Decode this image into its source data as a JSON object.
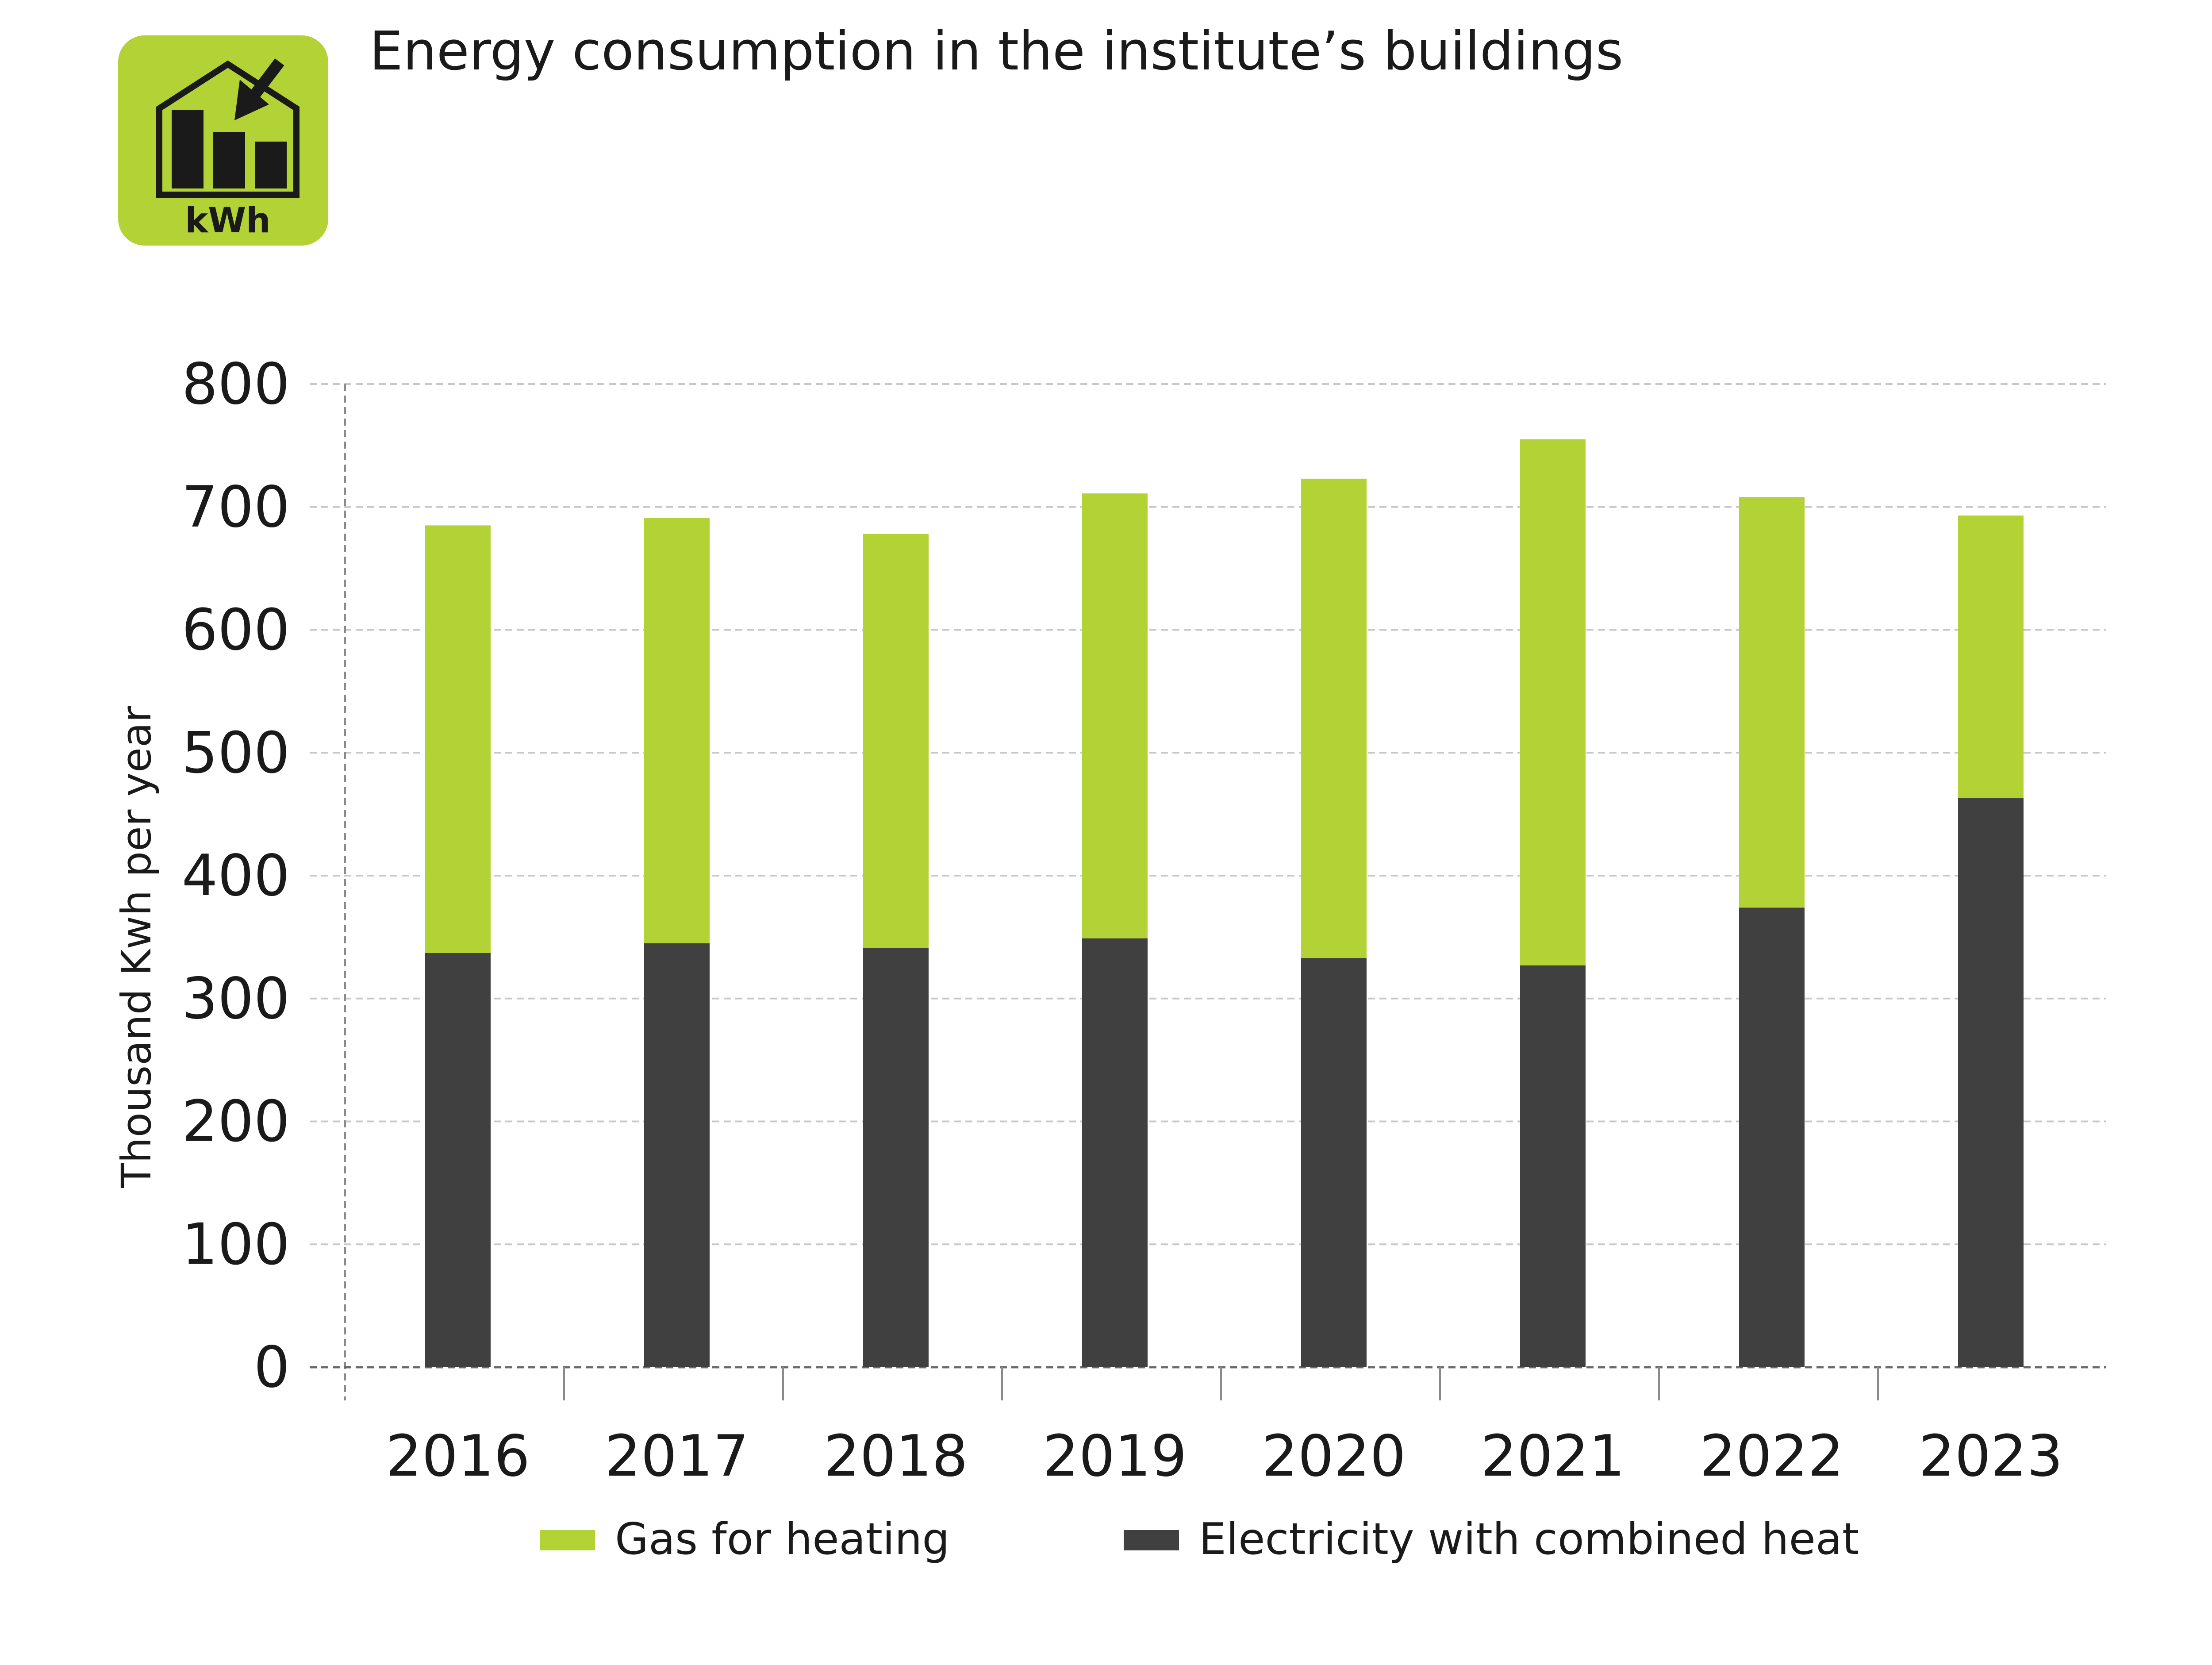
{
  "header": {
    "title": "Energy consumption in the institute’s buildings",
    "icon_label": "kWh",
    "icon_name": "energy-house-chart-icon"
  },
  "colors": {
    "gas": "#b2d235",
    "electricity": "#404040",
    "icon_background": "#b2d235",
    "grid": "#c8c8c8",
    "text": "#1a1a1a"
  },
  "chart_data": {
    "type": "bar",
    "stacked": true,
    "title": "Energy consumption in the institute’s buildings",
    "xlabel": "",
    "ylabel": "Thousand Kwh per year",
    "ylim": [
      0,
      800
    ],
    "yticks": [
      0,
      100,
      200,
      300,
      400,
      500,
      600,
      700,
      800
    ],
    "grid": true,
    "legend_position": "bottom",
    "categories": [
      "2016",
      "2017",
      "2018",
      "2019",
      "2020",
      "2021",
      "2022",
      "2023"
    ],
    "series": [
      {
        "name": "Electricity with combined heat",
        "color": "#404040",
        "values": [
          337,
          345,
          341,
          349,
          333,
          327,
          374,
          463
        ]
      },
      {
        "name": "Gas for heating",
        "color": "#b2d235",
        "values": [
          348,
          346,
          337,
          362,
          390,
          428,
          334,
          230
        ]
      }
    ],
    "legend": [
      {
        "label": "Gas for heating",
        "color": "#b2d235"
      },
      {
        "label": "Electricity with combined heat",
        "color": "#404040"
      }
    ]
  }
}
